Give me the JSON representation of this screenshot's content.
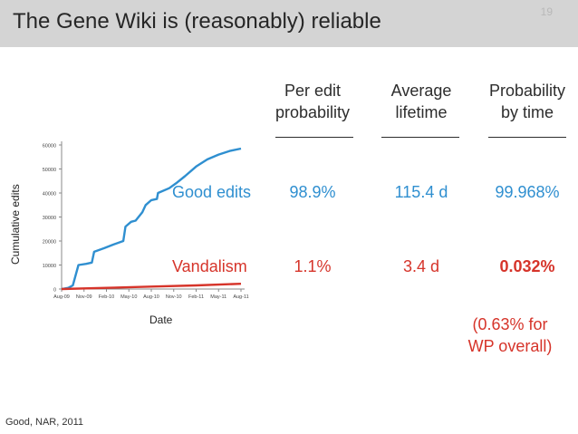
{
  "slide": {
    "title": "The Gene Wiki is (reasonably) reliable",
    "page_number": "19",
    "citation": "Good, NAR, 2011"
  },
  "table": {
    "headers": [
      {
        "line1": "Per edit",
        "line2": "probability"
      },
      {
        "line1": "Average",
        "line2": "lifetime"
      },
      {
        "line1": "Probability",
        "line2": "by time"
      }
    ],
    "rows": [
      {
        "label": "Good edits",
        "values": [
          "98.9%",
          "115.4 d",
          "99.968%"
        ]
      },
      {
        "label": "Vandalism",
        "values": [
          "1.1%",
          "3.4 d",
          "0.032%"
        ]
      }
    ],
    "note": {
      "line1": "(0.63% for",
      "line2": "WP overall)"
    }
  },
  "colors": {
    "good": "#2f8fd0",
    "vandalism": "#d6342a",
    "title_bar": "#d4d4d4"
  },
  "chart_data": {
    "type": "line",
    "xlabel": "Date",
    "ylabel": "Cumulative edits",
    "x_tick_labels": [
      "Aug-09",
      "Nov-09",
      "Feb-10",
      "May-10",
      "Aug-10",
      "Nov-10",
      "Feb-11",
      "May-11",
      "Aug-11"
    ],
    "y_tick_labels": [
      "0",
      "10000",
      "20000",
      "30000",
      "40000",
      "50000",
      "60000"
    ],
    "ylim": [
      0,
      60000
    ],
    "series": [
      {
        "name": "Good edits",
        "color": "#2f8fd0",
        "points": [
          [
            0,
            0
          ],
          [
            0.3,
            500
          ],
          [
            0.5,
            1500
          ],
          [
            0.75,
            10000
          ],
          [
            1.1,
            10500
          ],
          [
            1.35,
            11000
          ],
          [
            1.45,
            15500
          ],
          [
            1.9,
            17000
          ],
          [
            2.3,
            18500
          ],
          [
            2.75,
            20000
          ],
          [
            2.85,
            26000
          ],
          [
            3.1,
            28000
          ],
          [
            3.3,
            28500
          ],
          [
            3.6,
            32000
          ],
          [
            3.75,
            35000
          ],
          [
            4.0,
            37000
          ],
          [
            4.25,
            37500
          ],
          [
            4.3,
            40000
          ],
          [
            4.8,
            42000
          ],
          [
            5.1,
            44000
          ],
          [
            5.5,
            47000
          ],
          [
            6.0,
            51000
          ],
          [
            6.5,
            54000
          ],
          [
            7.0,
            56000
          ],
          [
            7.5,
            57500
          ],
          [
            8.0,
            58500
          ]
        ]
      },
      {
        "name": "Vandalism",
        "color": "#d6342a",
        "points": [
          [
            0,
            0
          ],
          [
            2,
            500
          ],
          [
            4,
            1000
          ],
          [
            6,
            1500
          ],
          [
            8,
            2200
          ]
        ]
      }
    ],
    "grid": false
  }
}
